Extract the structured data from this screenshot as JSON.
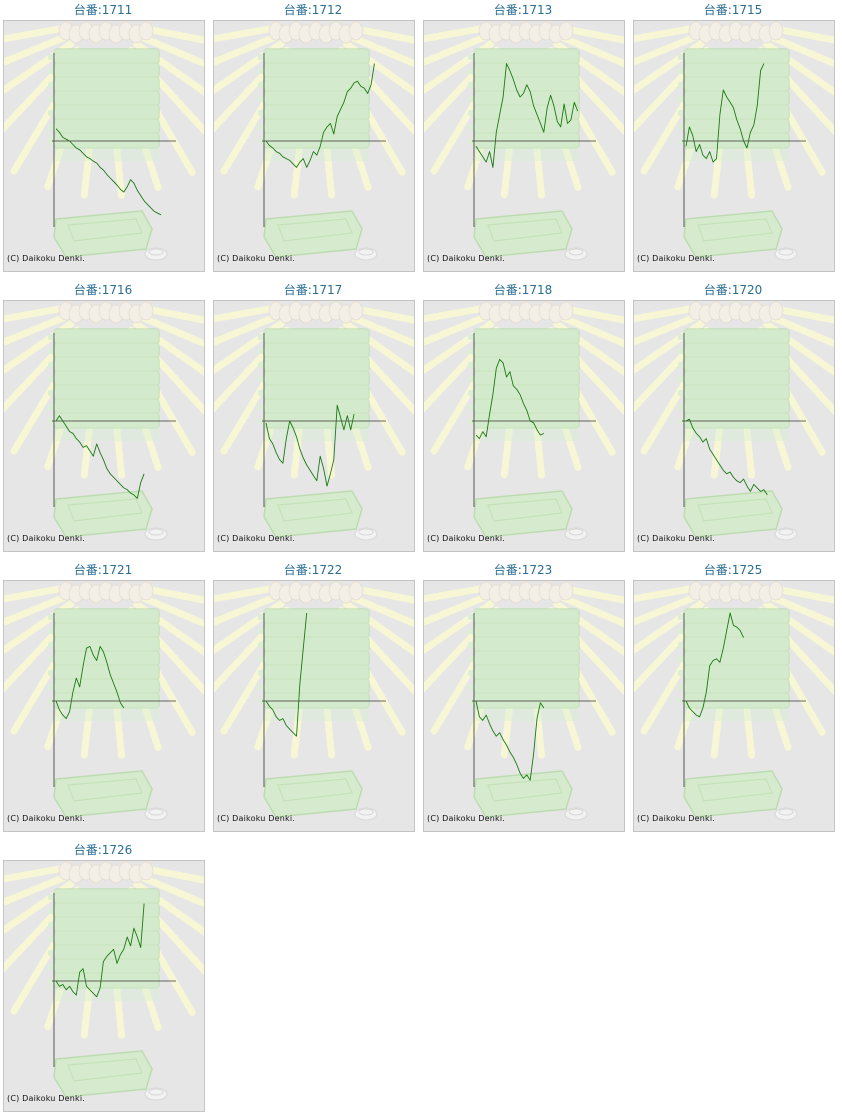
{
  "credit": "(C) Daikoku Denki.",
  "colors": {
    "title": "#2a6d94",
    "line": "#1a7a12",
    "axis": "#333333",
    "panel_bg": "#e6e6e6",
    "panel_border": "#c4c4c4"
  },
  "chart_data": [
    {
      "type": "line",
      "title": "台番:1711",
      "ylim": [
        -100,
        100
      ],
      "y": [
        14,
        10,
        4,
        2,
        0,
        -4,
        -8,
        -10,
        -14,
        -18,
        -20,
        -23,
        -25,
        -30,
        -33,
        -38,
        -42,
        -46,
        -50,
        -55,
        -58,
        -52,
        -44,
        -48,
        -56,
        -62,
        -68,
        -72,
        -76,
        -80,
        -82,
        -84
      ]
    },
    {
      "type": "line",
      "title": "台番:1712",
      "ylim": [
        -100,
        100
      ],
      "y": [
        0,
        -5,
        -8,
        -12,
        -14,
        -18,
        -20,
        -22,
        -26,
        -30,
        -24,
        -20,
        -30,
        -22,
        -12,
        -16,
        -6,
        10,
        16,
        20,
        8,
        28,
        36,
        44,
        56,
        60,
        66,
        68,
        62,
        60,
        54,
        64,
        88
      ]
    },
    {
      "type": "line",
      "title": "台番:1713",
      "ylim": [
        -100,
        100
      ],
      "y": [
        -6,
        -12,
        -18,
        -24,
        -12,
        -30,
        10,
        30,
        50,
        88,
        80,
        70,
        58,
        50,
        54,
        64,
        56,
        40,
        30,
        20,
        10,
        38,
        52,
        40,
        22,
        16,
        42,
        20,
        24,
        44,
        34
      ]
    },
    {
      "type": "line",
      "title": "台番:1715",
      "ylim": [
        -100,
        100
      ],
      "y": [
        -6,
        16,
        6,
        -12,
        -4,
        -16,
        -20,
        -12,
        -24,
        -20,
        30,
        58,
        50,
        44,
        38,
        24,
        14,
        0,
        -8,
        10,
        18,
        40,
        80,
        88
      ]
    },
    {
      "type": "line",
      "title": "台番:1716",
      "ylim": [
        -100,
        100
      ],
      "y": [
        0,
        6,
        0,
        -6,
        -12,
        -14,
        -20,
        -24,
        -30,
        -28,
        -34,
        -40,
        -26,
        -36,
        -44,
        -54,
        -60,
        -64,
        -68,
        -72,
        -76,
        -78,
        -82,
        -84,
        -88,
        -70,
        -60
      ]
    },
    {
      "type": "line",
      "title": "台番:1717",
      "ylim": [
        -100,
        100
      ],
      "y": [
        -2,
        -20,
        -26,
        -36,
        -44,
        -48,
        -20,
        0,
        -8,
        -18,
        -32,
        -42,
        -50,
        -56,
        -62,
        -68,
        -40,
        -54,
        -74,
        -60,
        -44,
        18,
        4,
        -10,
        6,
        -10,
        8
      ]
    },
    {
      "type": "line",
      "title": "台番:1718",
      "ylim": [
        -100,
        100
      ],
      "y": [
        -16,
        -20,
        -12,
        -18,
        8,
        30,
        60,
        70,
        66,
        50,
        56,
        40,
        36,
        30,
        20,
        12,
        0,
        -2,
        -10,
        -16,
        -14
      ]
    },
    {
      "type": "line",
      "title": "台番:1720",
      "ylim": [
        -100,
        100
      ],
      "y": [
        0,
        2,
        -8,
        -14,
        -18,
        -24,
        -20,
        -32,
        -38,
        -44,
        -50,
        -56,
        -60,
        -58,
        -64,
        -68,
        -70,
        -66,
        -74,
        -80,
        -72,
        -76,
        -80,
        -78,
        -84
      ]
    },
    {
      "type": "line",
      "title": "台番:1721",
      "ylim": [
        -100,
        100
      ],
      "y": [
        0,
        -10,
        -16,
        -20,
        -12,
        10,
        26,
        16,
        40,
        60,
        62,
        52,
        46,
        62,
        56,
        44,
        30,
        20,
        10,
        -2,
        -8
      ]
    },
    {
      "type": "line",
      "title": "台番:1722",
      "ylim": [
        -100,
        100
      ],
      "y": [
        0,
        -6,
        -10,
        -18,
        -22,
        -20,
        -28,
        -32,
        -36,
        -40,
        20,
        60,
        100
      ]
    },
    {
      "type": "line",
      "title": "台番:1723",
      "ylim": [
        -100,
        100
      ],
      "y": [
        0,
        -18,
        -22,
        -16,
        -26,
        -34,
        -40,
        -36,
        -44,
        -50,
        -58,
        -64,
        -72,
        -82,
        -88,
        -84,
        -90,
        -60,
        -20,
        -2,
        -8
      ]
    },
    {
      "type": "line",
      "title": "台番:1725",
      "ylim": [
        -100,
        100
      ],
      "y": [
        0,
        -8,
        -12,
        -16,
        -18,
        -8,
        10,
        40,
        46,
        48,
        44,
        60,
        80,
        100,
        86,
        84,
        80,
        72
      ]
    },
    {
      "type": "line",
      "title": "台番:1726",
      "ylim": [
        -100,
        100
      ],
      "y": [
        0,
        -6,
        -4,
        -10,
        -6,
        -12,
        -16,
        10,
        14,
        -6,
        -10,
        -14,
        -18,
        -8,
        22,
        28,
        32,
        36,
        20,
        30,
        36,
        50,
        40,
        60,
        50,
        38,
        88
      ]
    }
  ]
}
